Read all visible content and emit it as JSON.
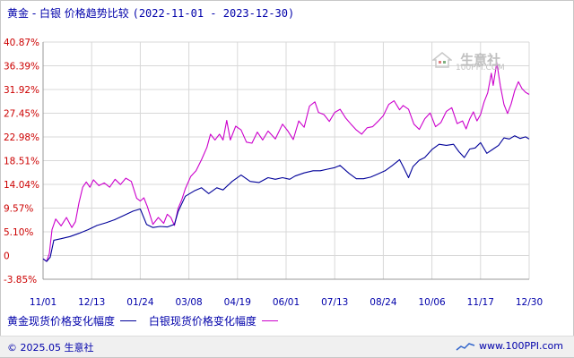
{
  "title": {
    "main": "黄金 - 白银 价格趋势比较",
    "date_range": "(2022-11-01 - 2023-12-30)"
  },
  "watermark": {
    "name": "生意社",
    "url": "100PPI.COM",
    "icon": "house-logo-icon"
  },
  "legend": [
    {
      "label": "黄金现货价格变化幅度",
      "color": "#000099"
    },
    {
      "label": "白银现货价格变化幅度",
      "color": "#cc00cc"
    }
  ],
  "footer": {
    "copyright": "© 2025.05 生意社",
    "site": "www.100PPI.com"
  },
  "chart_data": {
    "type": "line",
    "ylim": [
      -3.85,
      40.87
    ],
    "y_ticks": [
      "40.87%",
      "36.39%",
      "31.92%",
      "27.45%",
      "22.98%",
      "18.51%",
      "14.04%",
      "9.57%",
      "5.10%",
      "0",
      "-3.85%"
    ],
    "x_ticks": [
      "11/01",
      "12/13",
      "01/24",
      "03/08",
      "04/19",
      "06/01",
      "07/13",
      "08/24",
      "10/06",
      "11/17",
      "12/30"
    ],
    "grid": true,
    "series": [
      {
        "name": "黄金现货价格变化幅度",
        "color": "#000099",
        "points": [
          [
            0,
            0
          ],
          [
            4,
            -0.5
          ],
          [
            8,
            0.3
          ],
          [
            12,
            3.5
          ],
          [
            20,
            3.8
          ],
          [
            30,
            4.2
          ],
          [
            40,
            4.8
          ],
          [
            50,
            5.5
          ],
          [
            60,
            6.3
          ],
          [
            70,
            6.8
          ],
          [
            80,
            7.4
          ],
          [
            90,
            8.2
          ],
          [
            100,
            9.0
          ],
          [
            108,
            9.4
          ],
          [
            115,
            6.5
          ],
          [
            122,
            5.9
          ],
          [
            130,
            6.1
          ],
          [
            138,
            6.0
          ],
          [
            146,
            6.5
          ],
          [
            150,
            8.9
          ],
          [
            158,
            11.8
          ],
          [
            168,
            12.8
          ],
          [
            176,
            13.4
          ],
          [
            184,
            12.3
          ],
          [
            193,
            13.4
          ],
          [
            200,
            13.0
          ],
          [
            210,
            14.6
          ],
          [
            220,
            15.8
          ],
          [
            230,
            14.6
          ],
          [
            240,
            14.4
          ],
          [
            250,
            15.3
          ],
          [
            258,
            15.0
          ],
          [
            266,
            15.3
          ],
          [
            274,
            15.0
          ],
          [
            280,
            15.6
          ],
          [
            290,
            16.2
          ],
          [
            300,
            16.6
          ],
          [
            308,
            16.6
          ],
          [
            316,
            16.9
          ],
          [
            324,
            17.2
          ],
          [
            330,
            17.6
          ],
          [
            340,
            16.1
          ],
          [
            348,
            15.1
          ],
          [
            356,
            15.1
          ],
          [
            364,
            15.4
          ],
          [
            372,
            16.0
          ],
          [
            380,
            16.6
          ],
          [
            388,
            17.6
          ],
          [
            396,
            18.7
          ],
          [
            400,
            17.4
          ],
          [
            406,
            15.3
          ],
          [
            411,
            17.4
          ],
          [
            418,
            18.6
          ],
          [
            424,
            19.1
          ],
          [
            432,
            20.6
          ],
          [
            440,
            21.6
          ],
          [
            448,
            21.4
          ],
          [
            456,
            21.6
          ],
          [
            462,
            20.2
          ],
          [
            468,
            19.1
          ],
          [
            474,
            20.7
          ],
          [
            480,
            20.9
          ],
          [
            486,
            21.9
          ],
          [
            493,
            19.9
          ],
          [
            500,
            20.7
          ],
          [
            506,
            21.4
          ],
          [
            512,
            22.8
          ],
          [
            518,
            22.6
          ],
          [
            524,
            23.2
          ],
          [
            530,
            22.7
          ],
          [
            536,
            23.0
          ],
          [
            540,
            22.6
          ]
        ]
      },
      {
        "name": "白银现货价格变化幅度",
        "color": "#cc00cc",
        "points": [
          [
            0,
            0
          ],
          [
            4,
            -0.5
          ],
          [
            7,
            1.0
          ],
          [
            10,
            5.5
          ],
          [
            14,
            7.5
          ],
          [
            20,
            6.2
          ],
          [
            26,
            7.8
          ],
          [
            32,
            5.9
          ],
          [
            36,
            7.0
          ],
          [
            40,
            10.6
          ],
          [
            44,
            13.5
          ],
          [
            48,
            14.5
          ],
          [
            52,
            13.5
          ],
          [
            56,
            14.9
          ],
          [
            62,
            13.8
          ],
          [
            68,
            14.3
          ],
          [
            74,
            13.5
          ],
          [
            80,
            15.0
          ],
          [
            86,
            14.0
          ],
          [
            92,
            15.2
          ],
          [
            98,
            14.6
          ],
          [
            104,
            11.4
          ],
          [
            108,
            10.9
          ],
          [
            112,
            11.5
          ],
          [
            116,
            9.8
          ],
          [
            122,
            6.5
          ],
          [
            128,
            7.8
          ],
          [
            134,
            6.7
          ],
          [
            138,
            8.4
          ],
          [
            142,
            7.8
          ],
          [
            146,
            6.3
          ],
          [
            150,
            9.5
          ],
          [
            154,
            11.1
          ],
          [
            158,
            13.2
          ],
          [
            164,
            15.5
          ],
          [
            170,
            16.6
          ],
          [
            176,
            18.7
          ],
          [
            182,
            21.0
          ],
          [
            186,
            23.5
          ],
          [
            191,
            22.4
          ],
          [
            196,
            23.5
          ],
          [
            200,
            22.4
          ],
          [
            204,
            26.1
          ],
          [
            208,
            22.4
          ],
          [
            214,
            25.0
          ],
          [
            220,
            24.3
          ],
          [
            226,
            22.0
          ],
          [
            232,
            21.8
          ],
          [
            238,
            23.9
          ],
          [
            244,
            22.4
          ],
          [
            250,
            24.1
          ],
          [
            258,
            22.6
          ],
          [
            266,
            25.4
          ],
          [
            272,
            24.1
          ],
          [
            278,
            22.5
          ],
          [
            284,
            26.0
          ],
          [
            290,
            24.8
          ],
          [
            296,
            28.8
          ],
          [
            302,
            29.6
          ],
          [
            306,
            27.6
          ],
          [
            312,
            27.2
          ],
          [
            318,
            25.9
          ],
          [
            324,
            27.6
          ],
          [
            330,
            28.2
          ],
          [
            336,
            26.6
          ],
          [
            342,
            25.4
          ],
          [
            348,
            24.3
          ],
          [
            354,
            23.5
          ],
          [
            360,
            24.7
          ],
          [
            366,
            24.9
          ],
          [
            372,
            25.9
          ],
          [
            378,
            27.0
          ],
          [
            384,
            29.1
          ],
          [
            390,
            29.8
          ],
          [
            396,
            28.1
          ],
          [
            400,
            28.9
          ],
          [
            406,
            28.2
          ],
          [
            412,
            25.4
          ],
          [
            418,
            24.4
          ],
          [
            424,
            26.4
          ],
          [
            430,
            27.5
          ],
          [
            436,
            24.9
          ],
          [
            442,
            25.7
          ],
          [
            448,
            27.8
          ],
          [
            454,
            28.5
          ],
          [
            460,
            25.5
          ],
          [
            466,
            26.0
          ],
          [
            470,
            24.5
          ],
          [
            474,
            26.4
          ],
          [
            478,
            27.7
          ],
          [
            482,
            26.0
          ],
          [
            486,
            27.2
          ],
          [
            490,
            29.6
          ],
          [
            494,
            31.3
          ],
          [
            498,
            35.0
          ],
          [
            500,
            32.7
          ],
          [
            504,
            37.0
          ],
          [
            508,
            32.6
          ],
          [
            512,
            29.1
          ],
          [
            516,
            27.4
          ],
          [
            520,
            29.2
          ],
          [
            524,
            31.7
          ],
          [
            528,
            33.4
          ],
          [
            532,
            32.1
          ],
          [
            536,
            31.4
          ],
          [
            540,
            31.0
          ]
        ]
      }
    ]
  }
}
